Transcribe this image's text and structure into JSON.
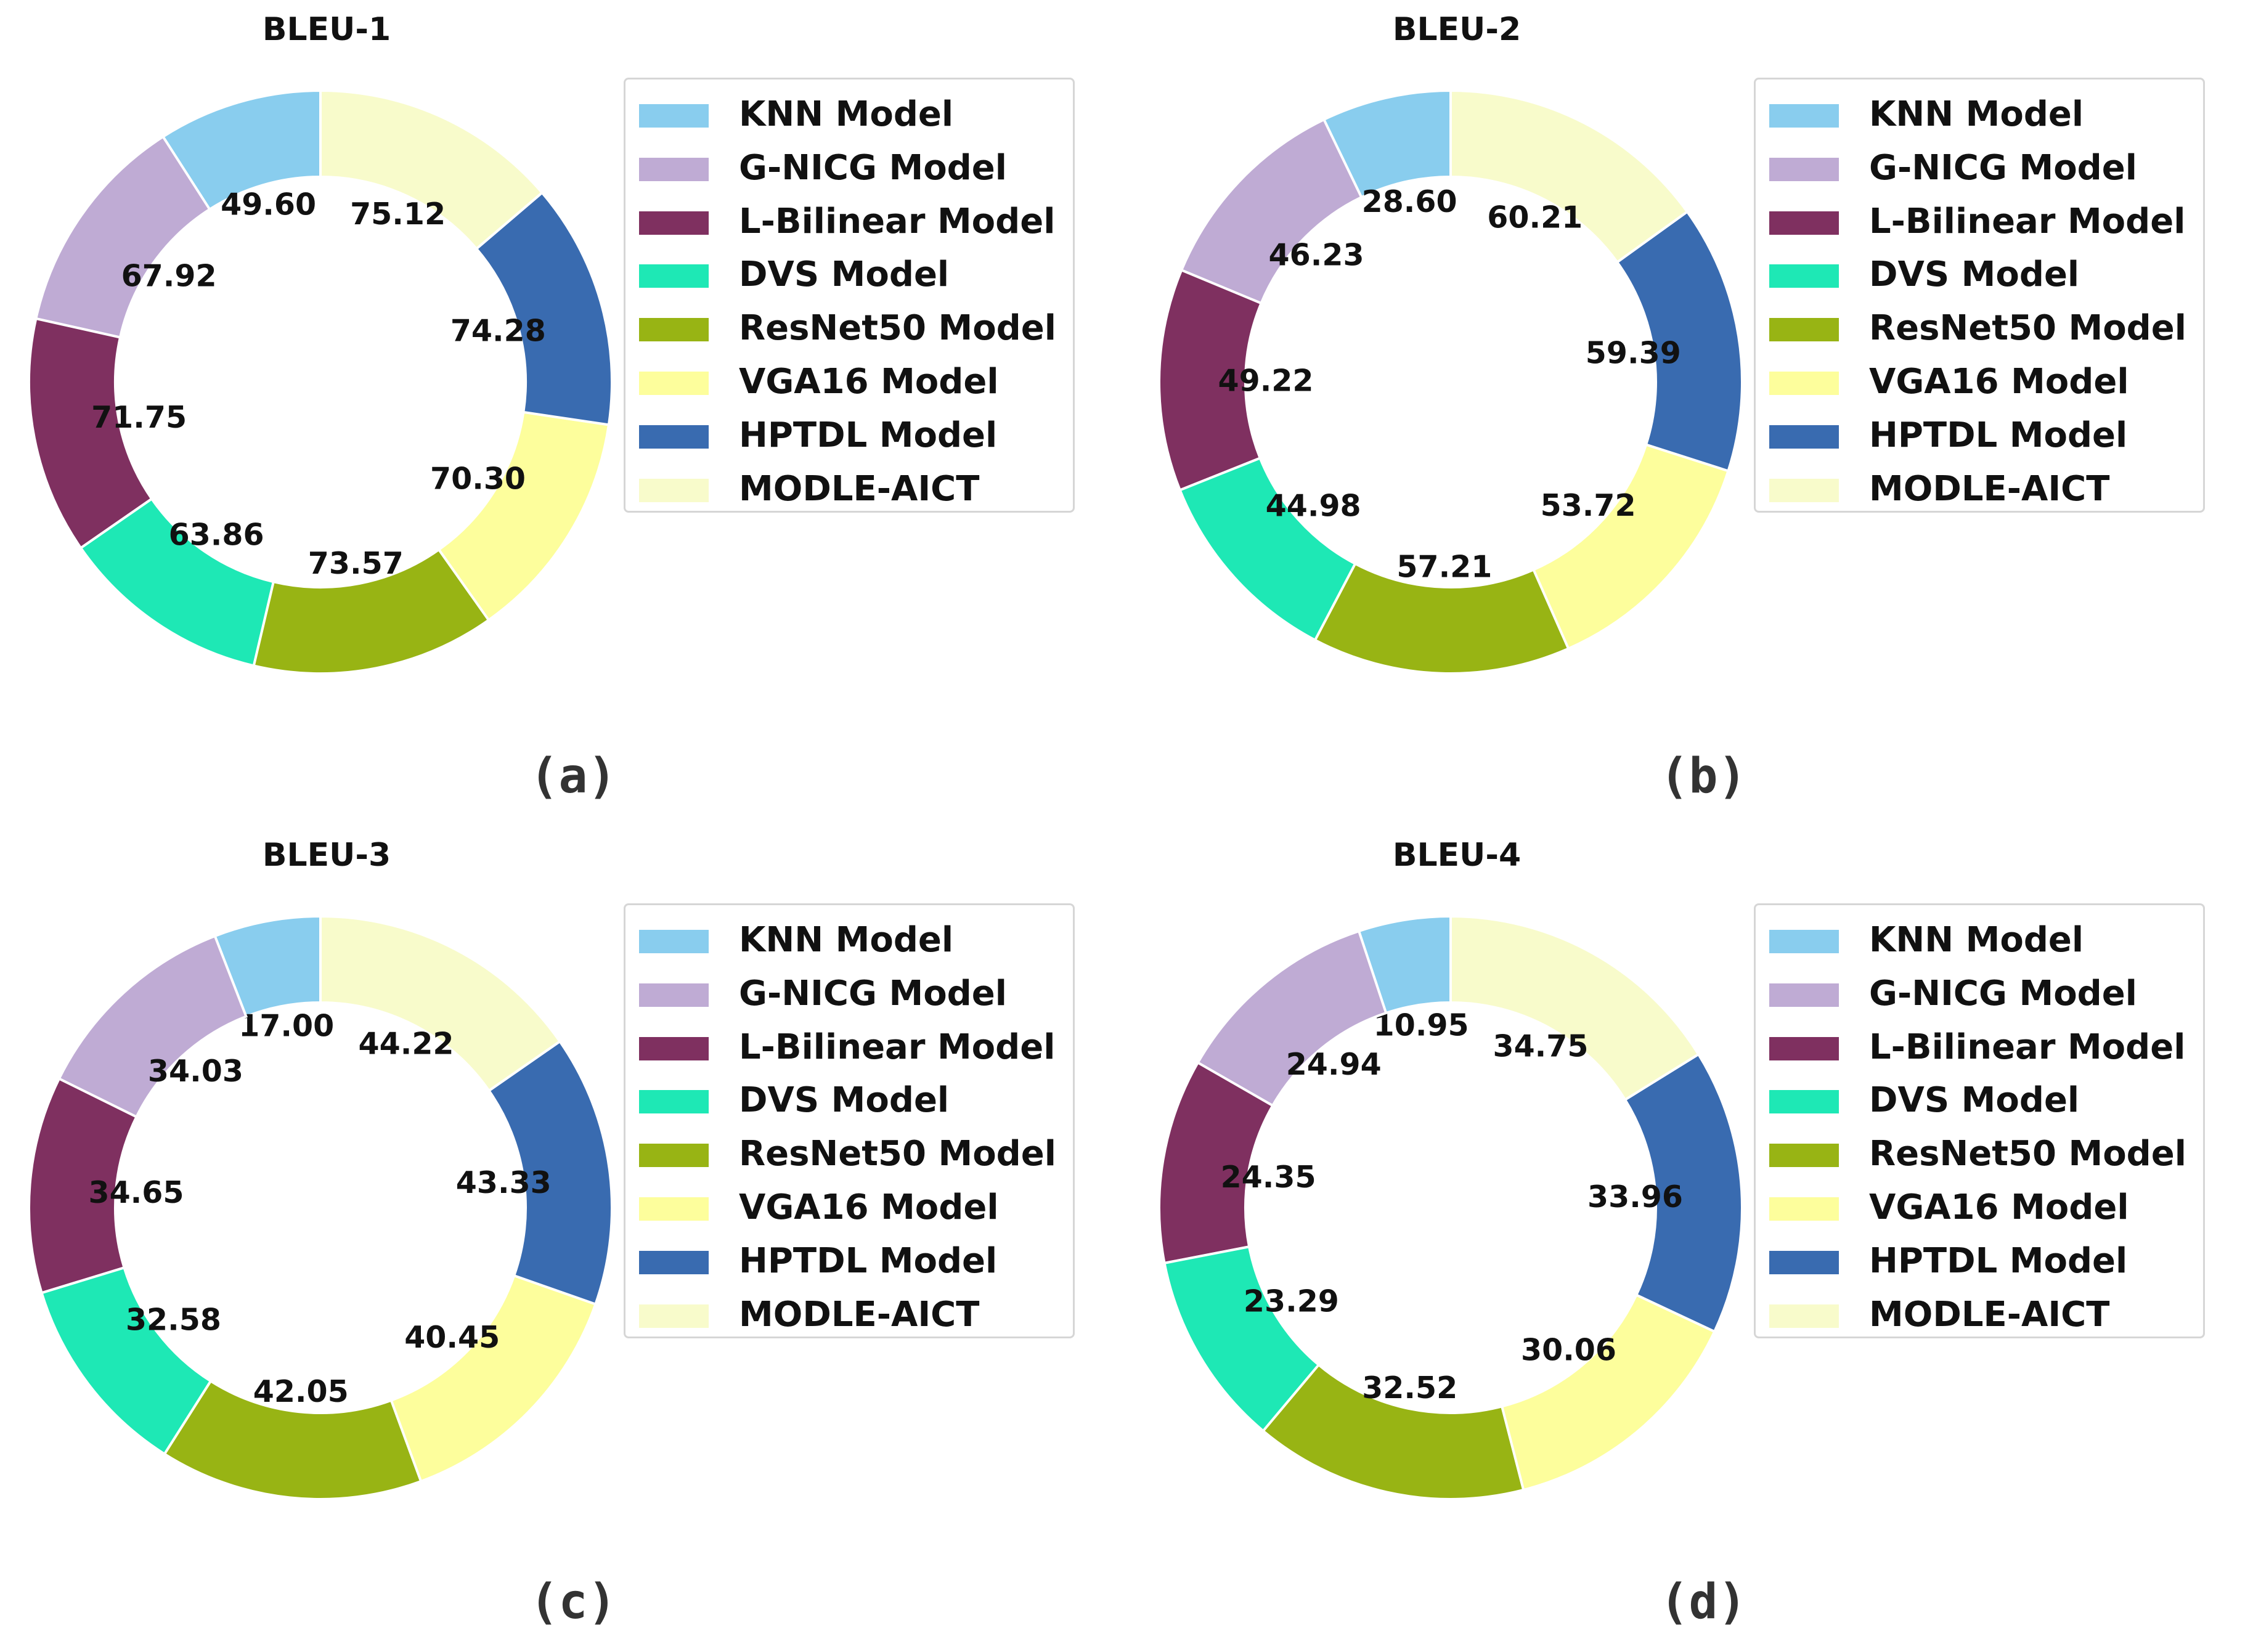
{
  "chart_data": [
    {
      "type": "pie",
      "panel": "(a)",
      "title": "BLEU-1",
      "categories": [
        "KNN Model",
        "G-NICG Model",
        "L-Bilinear Model",
        "DVS Model",
        "ResNet50 Model",
        "VGA16 Model",
        "HPTDL Model",
        "MODLE-AICT"
      ],
      "values": [
        49.6,
        67.92,
        71.75,
        63.86,
        73.57,
        70.3,
        74.28,
        75.12
      ],
      "value_labels": [
        "49.60",
        "67.92",
        "71.75",
        "63.86",
        "73.57",
        "70.30",
        "74.28",
        "75.12"
      ],
      "style": "donut",
      "start": "top, counter-clockwise",
      "legend": "right"
    },
    {
      "type": "pie",
      "panel": "(b)",
      "title": "BLEU-2",
      "categories": [
        "KNN Model",
        "G-NICG Model",
        "L-Bilinear Model",
        "DVS Model",
        "ResNet50 Model",
        "VGA16 Model",
        "HPTDL Model",
        "MODLE-AICT"
      ],
      "values": [
        28.6,
        46.23,
        49.22,
        44.98,
        57.21,
        53.72,
        59.39,
        60.21
      ],
      "value_labels": [
        "28.60",
        "46.23",
        "49.22",
        "44.98",
        "57.21",
        "53.72",
        "59.39",
        "60.21"
      ],
      "style": "donut",
      "start": "top, counter-clockwise",
      "legend": "right"
    },
    {
      "type": "pie",
      "panel": "(c)",
      "title": "BLEU-3",
      "categories": [
        "KNN Model",
        "G-NICG Model",
        "L-Bilinear Model",
        "DVS Model",
        "ResNet50 Model",
        "VGA16 Model",
        "HPTDL Model",
        "MODLE-AICT"
      ],
      "values": [
        17.0,
        34.03,
        34.65,
        32.58,
        42.05,
        40.45,
        43.33,
        44.22
      ],
      "value_labels": [
        "17.00",
        "34.03",
        "34.65",
        "32.58",
        "42.05",
        "40.45",
        "43.33",
        "44.22"
      ],
      "style": "donut",
      "start": "top, counter-clockwise",
      "legend": "right"
    },
    {
      "type": "pie",
      "panel": "(d)",
      "title": "BLEU-4",
      "categories": [
        "KNN Model",
        "G-NICG Model",
        "L-Bilinear Model",
        "DVS Model",
        "ResNet50 Model",
        "VGA16 Model",
        "HPTDL Model",
        "MODLE-AICT"
      ],
      "values": [
        10.95,
        24.94,
        24.35,
        23.29,
        32.52,
        30.06,
        33.96,
        34.75
      ],
      "value_labels": [
        "10.95",
        "24.94",
        "24.35",
        "23.29",
        "32.52",
        "30.06",
        "33.96",
        "34.75"
      ],
      "style": "donut",
      "start": "top, counter-clockwise",
      "legend": "right"
    }
  ],
  "colors": [
    "#89cdee",
    "#bfabd4",
    "#7f3060",
    "#1ee8b5",
    "#98b414",
    "#fdfe9c",
    "#396bb0",
    "#f8fbcb"
  ]
}
